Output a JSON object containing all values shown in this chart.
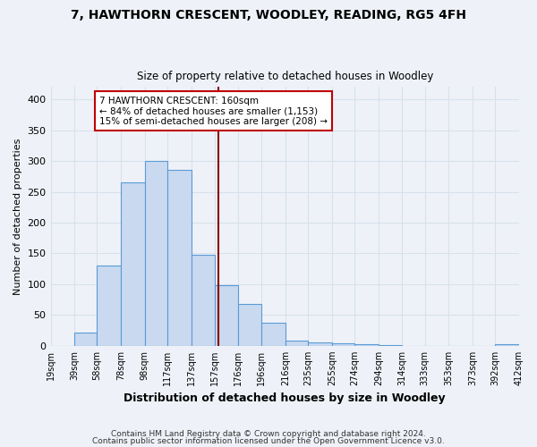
{
  "title": "7, HAWTHORN CRESCENT, WOODLEY, READING, RG5 4FH",
  "subtitle": "Size of property relative to detached houses in Woodley",
  "xlabel": "Distribution of detached houses by size in Woodley",
  "ylabel": "Number of detached properties",
  "bin_edges": [
    19,
    39,
    58,
    78,
    98,
    117,
    137,
    157,
    176,
    196,
    216,
    235,
    255,
    274,
    294,
    314,
    333,
    353,
    373,
    392,
    412
  ],
  "bin_labels": [
    "19sqm",
    "39sqm",
    "58sqm",
    "78sqm",
    "98sqm",
    "117sqm",
    "137sqm",
    "157sqm",
    "176sqm",
    "196sqm",
    "216sqm",
    "235sqm",
    "255sqm",
    "274sqm",
    "294sqm",
    "314sqm",
    "333sqm",
    "353sqm",
    "373sqm",
    "392sqm",
    "412sqm"
  ],
  "counts": [
    0,
    22,
    130,
    265,
    300,
    285,
    147,
    99,
    68,
    38,
    9,
    6,
    4,
    3,
    1,
    0,
    0,
    0,
    0,
    2
  ],
  "bar_fill": "#c9d9f0",
  "bar_edge": "#5b9bd5",
  "property_size": 160,
  "vline_color": "#8b0000",
  "annotation_line1": "7 HAWTHORN CRESCENT: 160sqm",
  "annotation_line2": "← 84% of detached houses are smaller (1,153)",
  "annotation_line3": "15% of semi-detached houses are larger (208) →",
  "annotation_box_color": "#ffffff",
  "annotation_box_edge": "#c00000",
  "ylim": [
    0,
    420
  ],
  "yticks": [
    0,
    50,
    100,
    150,
    200,
    250,
    300,
    350,
    400
  ],
  "footer1": "Contains HM Land Registry data © Crown copyright and database right 2024.",
  "footer2": "Contains public sector information licensed under the Open Government Licence v3.0.",
  "background_color": "#eef2f8",
  "grid_color": "#d8e0ec"
}
